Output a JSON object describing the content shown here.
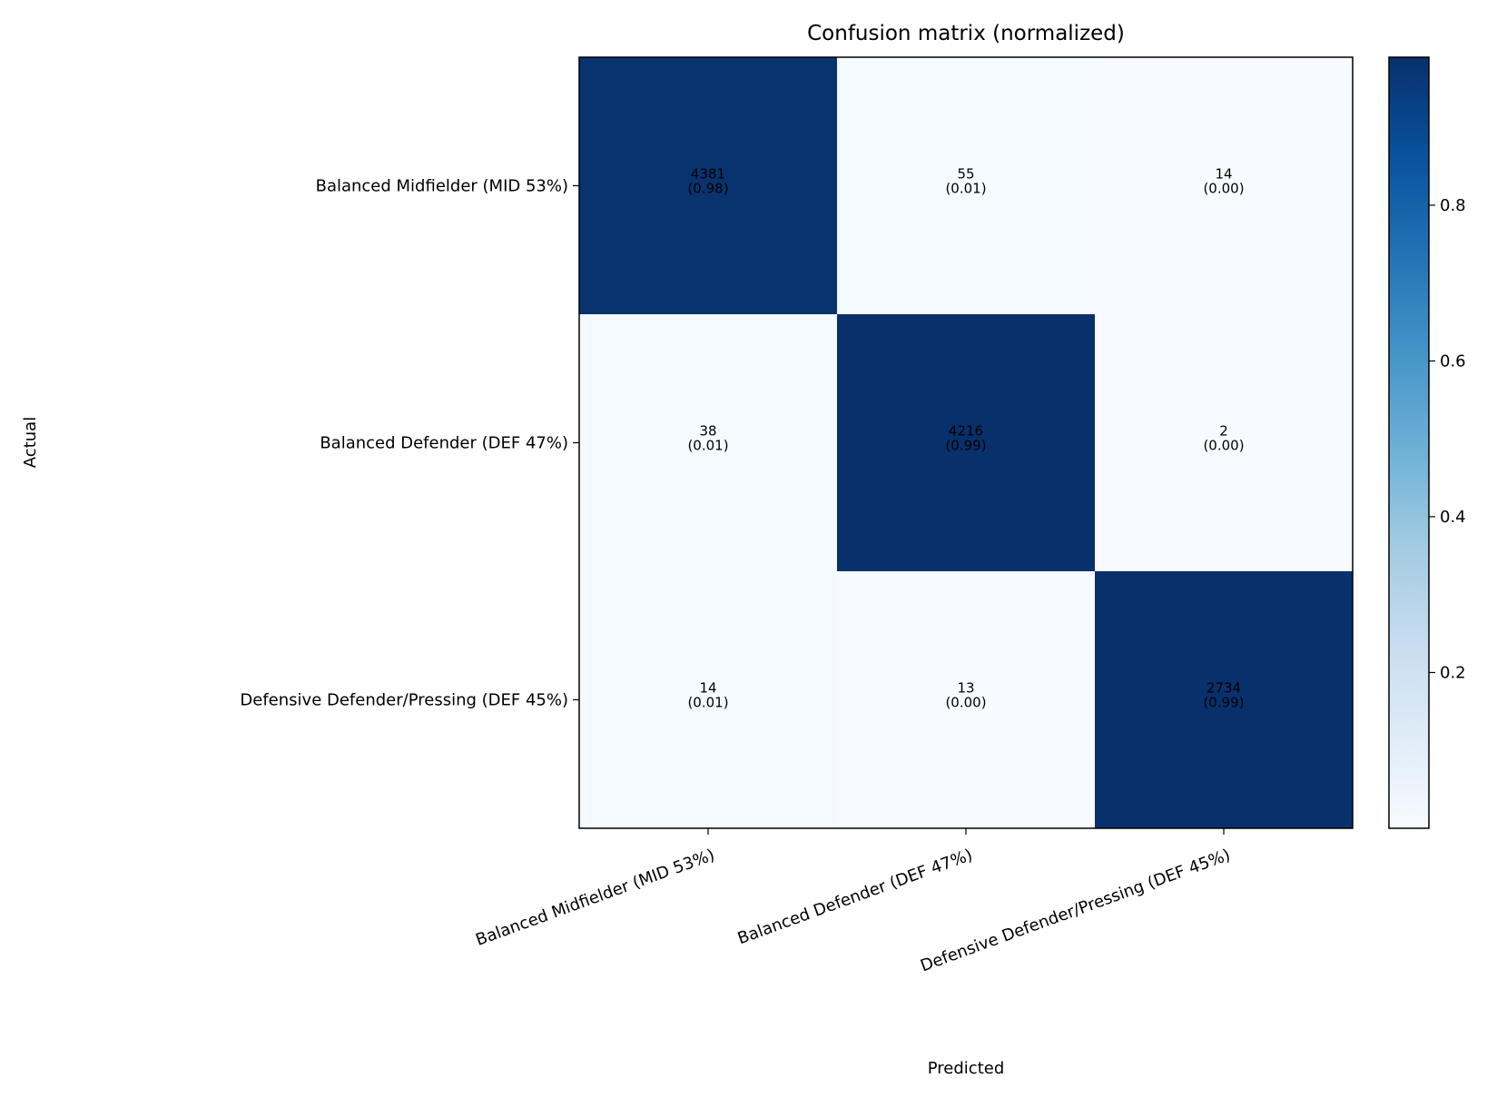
{
  "chart_data": {
    "type": "heatmap",
    "title": "Confusion matrix (normalized)",
    "xlabel": "Predicted",
    "ylabel": "Actual",
    "row_labels": [
      "Balanced Midfielder (MID 53%)",
      "Balanced Defender (DEF 47%)",
      "Defensive Defender/Pressing (DEF 45%)"
    ],
    "col_labels": [
      "Balanced Midfielder (MID 53%)",
      "Balanced Defender (DEF 47%)",
      "Defensive Defender/Pressing (DEF 45%)"
    ],
    "counts": [
      [
        4381,
        55,
        14
      ],
      [
        38,
        4216,
        2
      ],
      [
        14,
        13,
        2734
      ]
    ],
    "normalized": [
      [
        0.98,
        0.01,
        0.0
      ],
      [
        0.01,
        0.99,
        0.0
      ],
      [
        0.01,
        0.0,
        0.99
      ]
    ],
    "cell_labels": [
      [
        [
          "4381",
          "(0.98)"
        ],
        [
          "55",
          "(0.01)"
        ],
        [
          "14",
          "(0.00)"
        ]
      ],
      [
        [
          "38",
          "(0.01)"
        ],
        [
          "4216",
          "(0.99)"
        ],
        [
          "2",
          "(0.00)"
        ]
      ],
      [
        [
          "14",
          "(0.01)"
        ],
        [
          "13",
          "(0.00)"
        ],
        [
          "2734",
          "(0.99)"
        ]
      ]
    ],
    "colormap": "Blues",
    "colormap_stops": [
      "#f7fbff",
      "#deebf7",
      "#c6dbef",
      "#9ecae1",
      "#6baed6",
      "#4292c6",
      "#2171b5",
      "#08519c",
      "#08306b"
    ],
    "colorbar": {
      "range": [
        0.0,
        0.99
      ],
      "ticks": [
        0.2,
        0.4,
        0.6,
        0.8
      ],
      "tick_labels": [
        "0.2",
        "0.4",
        "0.6",
        "0.8"
      ]
    },
    "grid": false
  }
}
